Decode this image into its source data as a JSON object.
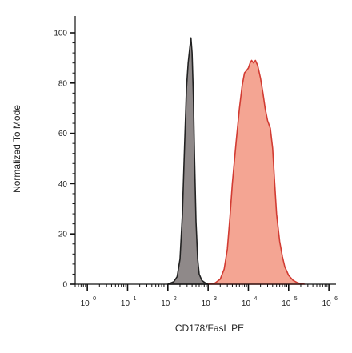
{
  "chart_data": {
    "type": "area",
    "xlabel": "CD178/FasL PE",
    "ylabel": "Normalized To Mode",
    "xscale": "log",
    "xlim": [
      0.5,
      1500000
    ],
    "ylim": [
      0,
      100
    ],
    "x_ticks": [
      {
        "base": "10",
        "exp": "0",
        "value": 1
      },
      {
        "base": "10",
        "exp": "1",
        "value": 10
      },
      {
        "base": "10",
        "exp": "2",
        "value": 100
      },
      {
        "base": "10",
        "exp": "3",
        "value": 1000
      },
      {
        "base": "10",
        "exp": "4",
        "value": 10000
      },
      {
        "base": "10",
        "exp": "5",
        "value": 100000
      },
      {
        "base": "10",
        "exp": "6",
        "value": 1000000
      }
    ],
    "y_ticks": [
      "0",
      "20",
      "40",
      "60",
      "80",
      "100"
    ],
    "y_tick_values": [
      0,
      20,
      40,
      60,
      80,
      100
    ],
    "grid": false,
    "series": [
      {
        "fill": "#8f8989",
        "stroke": "#222222",
        "x": [
          100,
          140,
          170,
          200,
          230,
          260,
          290,
          320,
          350,
          375,
          400,
          430,
          460,
          500,
          550,
          600,
          700,
          850,
          1000
        ],
        "y": [
          0,
          1,
          3,
          10,
          28,
          55,
          78,
          88,
          94,
          98,
          92,
          75,
          50,
          25,
          10,
          4,
          1.5,
          0.5,
          0
        ]
      },
      {
        "fill": "#f4a593",
        "stroke": "#d23b32",
        "x": [
          1000,
          1500,
          2000,
          2500,
          3000,
          3500,
          4000,
          5000,
          6000,
          7000,
          8000,
          9000,
          10000,
          11000,
          12000,
          13500,
          15000,
          17000,
          20000,
          23000,
          26000,
          30000,
          35000,
          40000,
          45000,
          50000,
          60000,
          70000,
          80000,
          100000,
          130000,
          170000,
          250000
        ],
        "y": [
          0,
          0.5,
          2,
          6,
          14,
          27,
          40,
          57,
          70,
          79,
          84,
          85,
          86,
          88,
          89,
          88,
          89,
          87,
          82,
          76,
          70,
          65,
          62,
          54,
          40,
          28,
          17,
          11,
          7,
          3.5,
          1.5,
          0.5,
          0
        ]
      }
    ]
  }
}
